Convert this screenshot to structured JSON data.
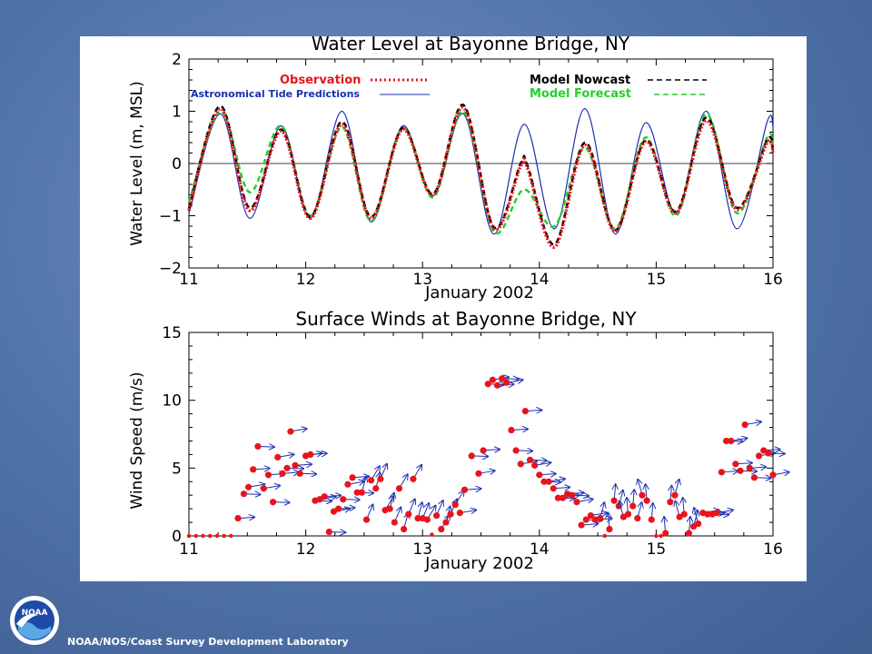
{
  "footer": {
    "credit": "NOAA/NOS/Coast Survey Development Laboratory"
  },
  "logo": {
    "text": "NOAA"
  },
  "colors": {
    "observation": "#e8141c",
    "astronomical": "#1a2fb0",
    "nowcast": "#000000",
    "forecast": "#22d12a",
    "wind_point": "#e8141c",
    "wind_arrow": "#1a2fb0"
  },
  "chart_data": [
    {
      "type": "line",
      "title": "Water Level at Bayonne Bridge, NY",
      "xlabel": "January 2002",
      "ylabel": "Water Level (m, MSL)",
      "xlim": [
        11,
        16
      ],
      "ylim": [
        -2,
        2
      ],
      "x_ticks": [
        "11",
        "12",
        "13",
        "14",
        "15",
        "16"
      ],
      "y_ticks": [
        "2",
        "1",
        "0",
        "−1",
        "−2"
      ],
      "legend": [
        {
          "name": "Observation",
          "style": "dotted"
        },
        {
          "name": "Astronomical Tide Predictions",
          "style": "solid"
        },
        {
          "name": "Model Nowcast",
          "style": "dashed"
        },
        {
          "name": "Model Forecast",
          "style": "dashed"
        }
      ],
      "series": [
        {
          "name": "Astronomical Tide Predictions",
          "x": [
            11.0,
            11.27,
            11.52,
            11.79,
            12.04,
            12.31,
            12.56,
            12.83,
            13.09,
            13.35,
            13.61,
            13.87,
            14.13,
            14.39,
            14.65,
            14.91,
            15.17,
            15.43,
            15.69,
            15.95,
            16.0
          ],
          "values": [
            -0.95,
            0.95,
            -1.05,
            0.72,
            -1.05,
            1.0,
            -1.12,
            0.72,
            -0.62,
            0.95,
            -1.35,
            0.75,
            -1.25,
            1.05,
            -1.35,
            0.78,
            -0.95,
            1.0,
            -1.25,
            0.8,
            0.7
          ]
        },
        {
          "name": "Observation",
          "x": [
            11.0,
            11.27,
            11.52,
            11.79,
            12.04,
            12.31,
            12.56,
            12.83,
            13.09,
            13.35,
            13.61,
            13.84,
            13.9,
            14.13,
            14.39,
            14.65,
            14.91,
            15.17,
            15.43,
            15.69,
            15.95,
            16.0
          ],
          "values": [
            -0.9,
            1.05,
            -0.9,
            0.62,
            -1.05,
            0.75,
            -1.05,
            0.65,
            -0.6,
            1.07,
            -1.25,
            -0.05,
            -0.1,
            -1.6,
            0.35,
            -1.3,
            0.42,
            -0.95,
            0.82,
            -0.88,
            0.4,
            0.2
          ]
        },
        {
          "name": "Model Nowcast",
          "x": [
            11.0,
            11.27,
            11.52,
            11.79,
            12.04,
            12.31,
            12.56,
            12.83,
            13.09,
            13.35,
            13.61,
            13.84,
            13.9,
            14.13,
            14.39,
            14.65,
            14.91,
            15.17,
            15.43,
            15.69,
            15.95,
            16.0
          ],
          "values": [
            -0.85,
            1.1,
            -0.85,
            0.65,
            -1.02,
            0.8,
            -1.02,
            0.68,
            -0.58,
            1.12,
            -1.22,
            0.0,
            -0.05,
            -1.55,
            0.4,
            -1.28,
            0.45,
            -0.92,
            0.88,
            -0.85,
            0.45,
            0.25
          ]
        },
        {
          "name": "Model Forecast",
          "x": [
            11.0,
            11.27,
            11.52,
            11.79,
            12.04,
            12.31,
            12.56,
            12.83,
            13.09,
            13.35,
            13.61,
            13.87,
            14.13,
            14.39,
            14.65,
            14.91,
            15.17,
            15.43,
            15.69,
            15.95,
            16.0
          ],
          "values": [
            -0.75,
            1.0,
            -0.55,
            0.72,
            -1.0,
            0.7,
            -1.1,
            0.68,
            -0.65,
            1.0,
            -1.3,
            -0.5,
            -1.2,
            0.3,
            -1.25,
            0.5,
            -1.0,
            0.95,
            -0.95,
            0.5,
            0.3
          ]
        }
      ]
    },
    {
      "type": "scatter",
      "title": "Surface Winds at Bayonne Bridge, NY",
      "xlabel": "January 2002",
      "ylabel": "Wind Speed (m/s)",
      "xlim": [
        11,
        16
      ],
      "ylim": [
        0,
        15
      ],
      "x_ticks": [
        "11",
        "12",
        "13",
        "14",
        "15",
        "16"
      ],
      "y_ticks": [
        "15",
        "10",
        "5",
        "0"
      ],
      "x": [
        11.0,
        11.06,
        11.12,
        11.18,
        11.24,
        11.3,
        11.36,
        11.42,
        11.47,
        11.51,
        11.55,
        11.59,
        11.64,
        11.68,
        11.72,
        11.76,
        11.8,
        11.84,
        11.87,
        11.91,
        11.95,
        12.0,
        12.04,
        12.08,
        12.12,
        12.16,
        12.2,
        12.24,
        12.28,
        12.32,
        12.36,
        12.4,
        12.44,
        12.48,
        12.52,
        12.56,
        12.6,
        12.64,
        12.68,
        12.72,
        12.76,
        12.8,
        12.84,
        12.88,
        12.92,
        12.96,
        13.0,
        13.04,
        13.08,
        13.12,
        13.16,
        13.2,
        13.24,
        13.28,
        13.32,
        13.36,
        13.42,
        13.48,
        13.52,
        13.56,
        13.6,
        13.64,
        13.68,
        13.72,
        13.76,
        13.8,
        13.84,
        13.88,
        13.92,
        13.96,
        14.0,
        14.04,
        14.08,
        14.12,
        14.16,
        14.2,
        14.24,
        14.28,
        14.32,
        14.36,
        14.4,
        14.44,
        14.48,
        14.52,
        14.56,
        14.6,
        14.64,
        14.68,
        14.72,
        14.76,
        14.8,
        14.84,
        14.88,
        14.92,
        14.96,
        15.0,
        15.04,
        15.08,
        15.12,
        15.16,
        15.2,
        15.24,
        15.28,
        15.32,
        15.36,
        15.4,
        15.44,
        15.48,
        15.52,
        15.56,
        15.6,
        15.64,
        15.68,
        15.72,
        15.76,
        15.8,
        15.84,
        15.88,
        15.92,
        15.96,
        16.0
      ],
      "values": [
        0,
        0,
        0,
        0,
        0,
        0,
        0,
        1.3,
        3.1,
        3.6,
        4.9,
        6.6,
        3.5,
        4.5,
        2.5,
        5.8,
        4.6,
        5.0,
        7.7,
        5.2,
        4.6,
        5.9,
        6.0,
        2.6,
        2.7,
        2.9,
        0.3,
        1.8,
        2.0,
        2.7,
        3.8,
        4.3,
        3.2,
        3.2,
        1.2,
        4.1,
        3.5,
        4.2,
        1.9,
        2.0,
        1.0,
        3.5,
        0.5,
        1.6,
        4.2,
        1.3,
        1.3,
        1.2,
        0.1,
        1.5,
        0.5,
        1.0,
        1.6,
        2.3,
        1.7,
        3.4,
        5.9,
        4.6,
        6.3,
        11.2,
        11.5,
        11.1,
        11.6,
        11.3,
        7.8,
        6.3,
        5.3,
        9.2,
        5.6,
        5.2,
        4.5,
        4.0,
        4.0,
        3.5,
        2.8,
        2.8,
        3.1,
        3.0,
        2.5,
        0.8,
        1.2,
        1.5,
        1.2,
        1.3,
        0,
        0.5,
        2.6,
        2.2,
        1.4,
        1.6,
        2.2,
        1.3,
        3.0,
        2.6,
        1.2,
        0,
        0,
        0.2,
        2.5,
        3.0,
        1.4,
        1.6,
        0.2,
        0.7,
        0.9,
        1.7,
        1.6,
        1.6,
        1.7,
        4.7,
        7.0,
        7.0,
        5.3,
        4.8,
        8.2,
        5.0,
        4.3,
        5.9,
        6.3,
        6.1,
        4.5
      ]
    }
  ]
}
